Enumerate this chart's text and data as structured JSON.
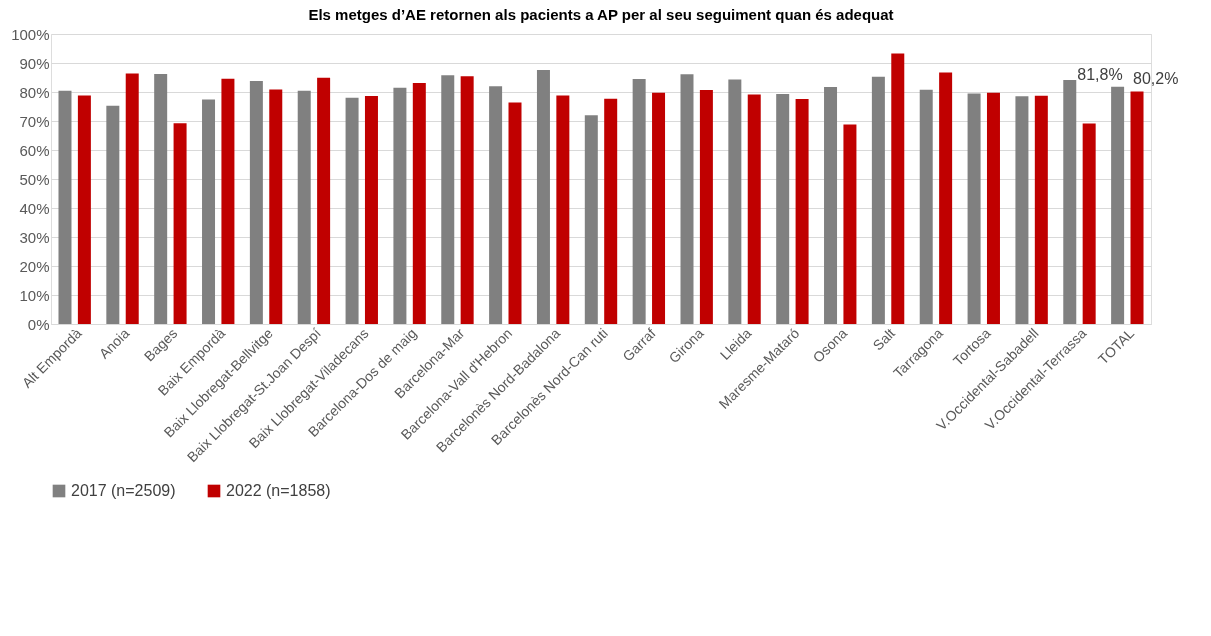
{
  "chart_data": {
    "type": "bar",
    "title": "Els metges d’AE retornen als pacients a AP per al seu seguiment quan és adequat",
    "categories": [
      "Alt Empordà",
      "Anoia",
      "Bages",
      "Baix Empordà",
      "Baix Llobregat-Bellvitge",
      "Baix Llobregat-St.Joan Despí",
      "Baix Llobregat-Viladecans",
      "Barcelona-Dos de maig",
      "Barcelona-Mar",
      "Barcelona-Vall d'Hebron",
      "Barcelonès Nord-Badalona",
      "Barcelonès Nord-Can ruti",
      "Garraf",
      "Girona",
      "Lleida",
      "Maresme-Mataró",
      "Osona",
      "Salt",
      "Tarragona",
      "Tortosa",
      "V.Occidental-Sabadell",
      "V.Occidental-Terrassa",
      "TOTAL"
    ],
    "series": [
      {
        "name": "2017 (n=2509)",
        "color": "#808080",
        "values": [
          80.4,
          75.3,
          86.2,
          77.4,
          83.8,
          80.4,
          78.0,
          81.5,
          85.8,
          82.0,
          87.6,
          72.0,
          84.5,
          86.1,
          84.3,
          79.3,
          81.7,
          85.3,
          80.8,
          79.5,
          78.5,
          84.1,
          81.8
        ],
        "value_labels": [
          null,
          null,
          null,
          null,
          null,
          null,
          null,
          null,
          null,
          null,
          null,
          null,
          null,
          null,
          null,
          null,
          null,
          null,
          null,
          null,
          null,
          null,
          "81,8%"
        ]
      },
      {
        "name": "2022 (n=1858)",
        "color": "#c00000",
        "values": [
          78.8,
          86.4,
          69.2,
          84.6,
          80.9,
          84.9,
          78.6,
          83.1,
          85.4,
          76.4,
          78.8,
          77.7,
          79.7,
          80.7,
          79.1,
          77.6,
          68.8,
          93.3,
          86.7,
          79.7,
          78.7,
          69.1,
          80.2
        ],
        "value_labels": [
          null,
          null,
          null,
          null,
          null,
          null,
          null,
          null,
          null,
          null,
          null,
          null,
          null,
          null,
          null,
          null,
          null,
          null,
          null,
          null,
          null,
          null,
          "80,2%"
        ]
      }
    ],
    "ylim": [
      0,
      100
    ],
    "yticks": [
      {
        "value": 0,
        "label": "0%"
      },
      {
        "value": 10,
        "label": "10%"
      },
      {
        "value": 20,
        "label": "20%"
      },
      {
        "value": 30,
        "label": "30%"
      },
      {
        "value": 40,
        "label": "40%"
      },
      {
        "value": 50,
        "label": "50%"
      },
      {
        "value": 60,
        "label": "60%"
      },
      {
        "value": 70,
        "label": "70%"
      },
      {
        "value": 80,
        "label": "80%"
      },
      {
        "value": 90,
        "label": "90%"
      },
      {
        "value": 100,
        "label": "100%"
      }
    ],
    "grid": "y",
    "legend": "bottom"
  }
}
